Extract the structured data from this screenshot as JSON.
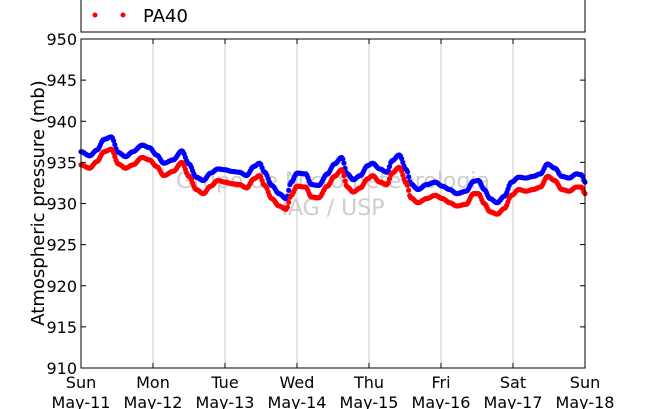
{
  "chart_data": {
    "type": "scatter",
    "ylabel": "Atmospheric pressure (mb)",
    "xlabel": "",
    "ylim": [
      910,
      950
    ],
    "y_ticks": [
      910,
      915,
      920,
      925,
      930,
      935,
      940,
      945,
      950
    ],
    "xlim": [
      0,
      7
    ],
    "x_ticks": [
      {
        "x": 0,
        "day": "Sun",
        "date": "May-11"
      },
      {
        "x": 1,
        "day": "Mon",
        "date": "May-12"
      },
      {
        "x": 2,
        "day": "Tue",
        "date": "May-13"
      },
      {
        "x": 3,
        "day": "Wed",
        "date": "May-14"
      },
      {
        "x": 4,
        "day": "Thu",
        "date": "May-15"
      },
      {
        "x": 5,
        "day": "Fri",
        "date": "May-16"
      },
      {
        "x": 6,
        "day": "Sat",
        "date": "May-17"
      },
      {
        "x": 7,
        "day": "Sun",
        "date": "May-18"
      }
    ],
    "grid": "vertical",
    "legend_position": "top",
    "watermark": [
      "Grupo de Micrometeorologia",
      "IAG / USP"
    ],
    "series": [
      {
        "name": "",
        "color": "#0000ff",
        "points": [
          [
            0.0,
            936.3
          ],
          [
            0.12,
            935.8
          ],
          [
            0.22,
            936.5
          ],
          [
            0.32,
            937.8
          ],
          [
            0.42,
            938.1
          ],
          [
            0.52,
            936.2
          ],
          [
            0.62,
            935.7
          ],
          [
            0.72,
            936.3
          ],
          [
            0.85,
            937.1
          ],
          [
            0.95,
            936.8
          ],
          [
            1.05,
            935.9
          ],
          [
            1.15,
            934.9
          ],
          [
            1.28,
            935.3
          ],
          [
            1.4,
            936.4
          ],
          [
            1.5,
            934.8
          ],
          [
            1.6,
            933.2
          ],
          [
            1.7,
            932.8
          ],
          [
            1.8,
            933.7
          ],
          [
            1.9,
            934.2
          ],
          [
            2.0,
            934.1
          ],
          [
            2.1,
            933.9
          ],
          [
            2.2,
            933.8
          ],
          [
            2.3,
            933.4
          ],
          [
            2.4,
            934.5
          ],
          [
            2.48,
            934.9
          ],
          [
            2.55,
            933.8
          ],
          [
            2.65,
            932.2
          ],
          [
            2.75,
            931.2
          ],
          [
            2.85,
            930.6
          ],
          [
            2.92,
            932.6
          ],
          [
            3.0,
            933.7
          ],
          [
            3.12,
            933.6
          ],
          [
            3.2,
            932.3
          ],
          [
            3.3,
            932.2
          ],
          [
            3.42,
            933.6
          ],
          [
            3.52,
            934.8
          ],
          [
            3.62,
            935.6
          ],
          [
            3.7,
            933.6
          ],
          [
            3.78,
            932.9
          ],
          [
            3.88,
            933.4
          ],
          [
            3.98,
            934.6
          ],
          [
            4.05,
            934.9
          ],
          [
            4.15,
            934.2
          ],
          [
            4.25,
            933.8
          ],
          [
            4.32,
            935.2
          ],
          [
            4.42,
            935.9
          ],
          [
            4.52,
            934.1
          ],
          [
            4.58,
            932.4
          ],
          [
            4.68,
            931.7
          ],
          [
            4.8,
            932.3
          ],
          [
            4.92,
            932.6
          ],
          [
            5.02,
            932.1
          ],
          [
            5.12,
            931.7
          ],
          [
            5.22,
            931.2
          ],
          [
            5.35,
            931.5
          ],
          [
            5.45,
            932.7
          ],
          [
            5.52,
            932.8
          ],
          [
            5.6,
            931.7
          ],
          [
            5.68,
            930.6
          ],
          [
            5.78,
            930.1
          ],
          [
            5.88,
            930.9
          ],
          [
            5.98,
            932.6
          ],
          [
            6.08,
            933.2
          ],
          [
            6.18,
            933.1
          ],
          [
            6.28,
            933.3
          ],
          [
            6.38,
            933.6
          ],
          [
            6.48,
            934.8
          ],
          [
            6.58,
            934.3
          ],
          [
            6.68,
            933.3
          ],
          [
            6.78,
            933.1
          ],
          [
            6.88,
            933.6
          ],
          [
            6.95,
            933.5
          ],
          [
            7.0,
            932.6
          ]
        ]
      },
      {
        "name": "PA40",
        "color": "#ff0000",
        "points": [
          [
            0.0,
            934.7
          ],
          [
            0.12,
            934.3
          ],
          [
            0.22,
            935.1
          ],
          [
            0.32,
            936.3
          ],
          [
            0.42,
            936.6
          ],
          [
            0.52,
            934.8
          ],
          [
            0.62,
            934.3
          ],
          [
            0.72,
            934.7
          ],
          [
            0.85,
            935.6
          ],
          [
            0.95,
            935.3
          ],
          [
            1.05,
            934.5
          ],
          [
            1.15,
            933.4
          ],
          [
            1.28,
            933.9
          ],
          [
            1.4,
            935.0
          ],
          [
            1.5,
            933.3
          ],
          [
            1.6,
            931.7
          ],
          [
            1.7,
            931.2
          ],
          [
            1.8,
            932.1
          ],
          [
            1.9,
            932.8
          ],
          [
            2.0,
            932.6
          ],
          [
            2.1,
            932.4
          ],
          [
            2.2,
            932.3
          ],
          [
            2.3,
            931.9
          ],
          [
            2.4,
            933.0
          ],
          [
            2.48,
            933.4
          ],
          [
            2.55,
            932.2
          ],
          [
            2.65,
            930.6
          ],
          [
            2.75,
            929.7
          ],
          [
            2.85,
            929.3
          ],
          [
            2.92,
            931.0
          ],
          [
            3.0,
            932.1
          ],
          [
            3.12,
            932.0
          ],
          [
            3.2,
            930.8
          ],
          [
            3.3,
            930.7
          ],
          [
            3.42,
            932.1
          ],
          [
            3.52,
            933.3
          ],
          [
            3.62,
            934.1
          ],
          [
            3.7,
            932.0
          ],
          [
            3.78,
            931.4
          ],
          [
            3.88,
            931.9
          ],
          [
            3.98,
            933.0
          ],
          [
            4.05,
            933.4
          ],
          [
            4.15,
            932.6
          ],
          [
            4.25,
            932.3
          ],
          [
            4.32,
            933.7
          ],
          [
            4.42,
            934.4
          ],
          [
            4.52,
            932.5
          ],
          [
            4.58,
            930.7
          ],
          [
            4.68,
            930.1
          ],
          [
            4.8,
            930.6
          ],
          [
            4.92,
            931.0
          ],
          [
            5.02,
            930.6
          ],
          [
            5.12,
            930.1
          ],
          [
            5.22,
            929.7
          ],
          [
            5.35,
            929.9
          ],
          [
            5.45,
            931.2
          ],
          [
            5.52,
            931.2
          ],
          [
            5.6,
            930.0
          ],
          [
            5.68,
            929.0
          ],
          [
            5.78,
            928.7
          ],
          [
            5.88,
            929.4
          ],
          [
            5.98,
            931.0
          ],
          [
            6.08,
            931.7
          ],
          [
            6.18,
            931.5
          ],
          [
            6.28,
            931.7
          ],
          [
            6.38,
            932.0
          ],
          [
            6.48,
            933.3
          ],
          [
            6.58,
            932.8
          ],
          [
            6.68,
            931.7
          ],
          [
            6.78,
            931.5
          ],
          [
            6.88,
            932.0
          ],
          [
            6.95,
            932.0
          ],
          [
            7.0,
            931.2
          ]
        ]
      }
    ]
  }
}
